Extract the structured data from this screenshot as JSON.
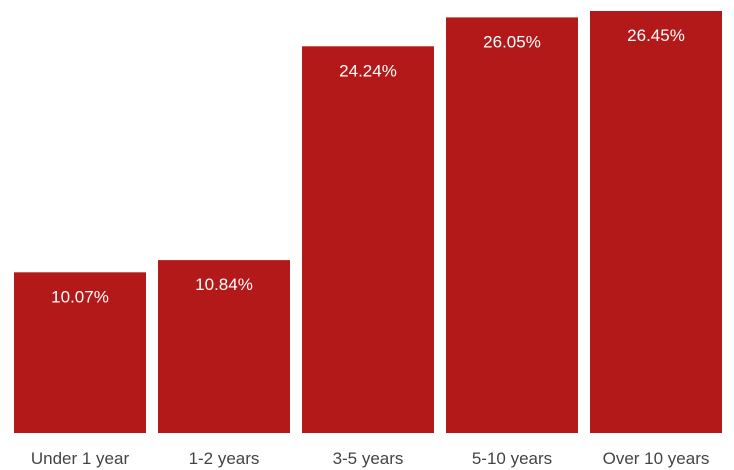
{
  "chart_data": {
    "type": "bar",
    "categories": [
      "Under 1 year",
      "1-2 years",
      "3-5 years",
      "5-10 years",
      "Over 10 years"
    ],
    "values": [
      10.07,
      10.84,
      24.24,
      26.05,
      26.45
    ],
    "data_labels": [
      "10.07%",
      "10.84%",
      "24.24%",
      "26.05%",
      "26.45%"
    ],
    "title": "",
    "xlabel": "",
    "ylabel": "",
    "ylim": [
      0,
      26.45
    ],
    "grid": false,
    "colors": {
      "bar": "#b31919",
      "data_label": "#ffffff",
      "tick_label": "#444444",
      "background": "#ffffff"
    }
  }
}
